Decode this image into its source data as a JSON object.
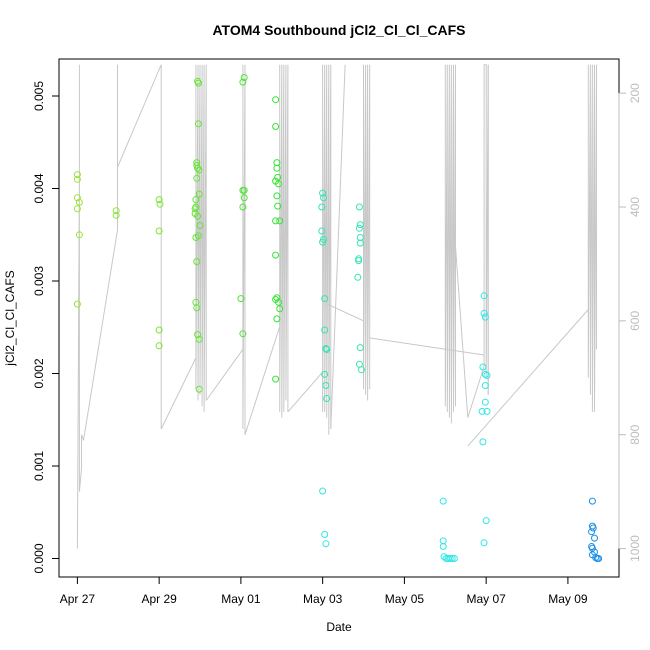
{
  "chart_data": {
    "type": "scatter",
    "title": "ATOM4 Southbound jCl2_Cl_Cl_CAFS",
    "xlabel": "Date",
    "ylabel": "jCl2_Cl_Cl_CAFS",
    "x_ticks": [
      "Apr 27",
      "Apr 29",
      "May 01",
      "May 03",
      "May 05",
      "May 07",
      "May 09"
    ],
    "x_tick_values": [
      0,
      2,
      4,
      6,
      8,
      10,
      12
    ],
    "xlim": [
      -0.45,
      13.25
    ],
    "y_ticks": [
      "0.000",
      "0.001",
      "0.002",
      "0.003",
      "0.004",
      "0.005"
    ],
    "y_tick_values": [
      0,
      0.001,
      0.002,
      0.003,
      0.004,
      0.005
    ],
    "ylim": [
      -0.0002,
      0.0054
    ],
    "right_axis": {
      "ticks": [
        "200",
        "400",
        "600",
        "800",
        "1000"
      ],
      "tick_values": [
        200,
        400,
        600,
        800,
        1000
      ],
      "lim": [
        140,
        1050
      ],
      "inverted": true,
      "color": "#bdbdbd"
    },
    "grid": false,
    "legend": "none",
    "altitude_line": {
      "color": "#c8c8c8",
      "segments": [
        [
          [
            0.0,
            1000
          ],
          [
            0.05,
            340
          ],
          [
            0.05,
            150
          ],
          [
            0.05,
            520
          ],
          [
            0.05,
            900
          ],
          [
            0.1,
            860
          ],
          [
            0.1,
            800
          ],
          [
            0.15,
            810
          ]
        ],
        [
          [
            0.15,
            810
          ],
          [
            0.98,
            440
          ],
          [
            0.98,
            150
          ]
        ],
        [
          [
            0.98,
            150
          ],
          [
            0.98,
            440
          ],
          [
            0.98,
            330
          ]
        ],
        [
          [
            0.98,
            330
          ],
          [
            2.05,
            150
          ],
          [
            2.05,
            540
          ],
          [
            2.05,
            790
          ]
        ],
        [
          [
            2.05,
            790
          ],
          [
            2.9,
            665
          ],
          [
            2.9,
            150
          ],
          [
            2.9,
            720
          ],
          [
            2.95,
            150
          ],
          [
            2.95,
            740
          ],
          [
            3.0,
            150
          ],
          [
            3.0,
            730
          ],
          [
            3.05,
            150
          ],
          [
            3.05,
            750
          ],
          [
            3.1,
            150
          ],
          [
            3.1,
            760
          ],
          [
            3.15,
            150
          ],
          [
            3.15,
            740
          ]
        ],
        [
          [
            3.15,
            740
          ],
          [
            4.05,
            650
          ],
          [
            4.05,
            150
          ],
          [
            4.05,
            790
          ],
          [
            4.1,
            150
          ],
          [
            4.1,
            800
          ]
        ],
        [
          [
            4.1,
            800
          ],
          [
            4.95,
            610
          ],
          [
            4.95,
            150
          ],
          [
            4.95,
            760
          ],
          [
            5.0,
            150
          ],
          [
            5.0,
            770
          ],
          [
            5.05,
            150
          ],
          [
            5.05,
            760
          ],
          [
            5.1,
            150
          ],
          [
            5.1,
            740
          ],
          [
            5.15,
            150
          ],
          [
            5.15,
            760
          ]
        ],
        [
          [
            5.15,
            760
          ],
          [
            6.0,
            690
          ],
          [
            6.0,
            150
          ],
          [
            6.0,
            760
          ],
          [
            6.05,
            150
          ],
          [
            6.05,
            760
          ],
          [
            6.1,
            150
          ],
          [
            6.1,
            770
          ],
          [
            6.15,
            150
          ],
          [
            6.15,
            800
          ],
          [
            6.2,
            150
          ],
          [
            6.2,
            790
          ]
        ],
        [
          [
            6.2,
            790
          ],
          [
            6.55,
            150
          ]
        ],
        [
          [
            6.1,
            570
          ],
          [
            7.0,
            600
          ],
          [
            7.0,
            150
          ],
          [
            7.0,
            720
          ],
          [
            7.05,
            150
          ],
          [
            7.05,
            730
          ],
          [
            7.1,
            150
          ],
          [
            7.1,
            740
          ],
          [
            7.15,
            150
          ],
          [
            7.15,
            720
          ]
        ],
        [
          [
            7.15,
            630
          ],
          [
            9.95,
            660
          ]
        ],
        [
          [
            9.0,
            470
          ],
          [
            9.0,
            150
          ],
          [
            9.0,
            750
          ],
          [
            9.05,
            150
          ],
          [
            9.05,
            760
          ],
          [
            9.1,
            150
          ],
          [
            9.1,
            770
          ],
          [
            9.15,
            150
          ],
          [
            9.15,
            780
          ],
          [
            9.2,
            150
          ],
          [
            9.2,
            760
          ],
          [
            9.25,
            150
          ],
          [
            9.25,
            750
          ]
        ],
        [
          [
            9.25,
            470
          ],
          [
            9.55,
            770
          ],
          [
            9.95,
            680
          ],
          [
            9.95,
            150
          ],
          [
            10.0,
            150
          ],
          [
            10.0,
            700
          ],
          [
            10.05,
            150
          ],
          [
            10.05,
            730
          ]
        ],
        [
          [
            10.05,
            730
          ],
          [
            10.05,
            150
          ]
        ],
        [
          [
            9.55,
            820
          ],
          [
            12.5,
            580
          ],
          [
            12.5,
            150
          ],
          [
            12.5,
            700
          ],
          [
            12.55,
            150
          ],
          [
            12.55,
            730
          ],
          [
            12.6,
            150
          ],
          [
            12.6,
            760
          ],
          [
            12.65,
            150
          ],
          [
            12.65,
            760
          ],
          [
            12.7,
            150
          ],
          [
            12.7,
            650
          ]
        ]
      ]
    },
    "points": [
      {
        "x": 0.0,
        "y": 0.0041,
        "c": "#99e633"
      },
      {
        "x": 0.0,
        "y": 0.00415,
        "c": "#99e633"
      },
      {
        "x": 0.0,
        "y": 0.0039,
        "c": "#99e633"
      },
      {
        "x": 0.05,
        "y": 0.00385,
        "c": "#99e633"
      },
      {
        "x": 0.0,
        "y": 0.00378,
        "c": "#99e633"
      },
      {
        "x": 0.05,
        "y": 0.0035,
        "c": "#99e633"
      },
      {
        "x": 0.0,
        "y": 0.00275,
        "c": "#99e633"
      },
      {
        "x": 0.95,
        "y": 0.00376,
        "c": "#88e633"
      },
      {
        "x": 0.95,
        "y": 0.00371,
        "c": "#88e633"
      },
      {
        "x": 2.0,
        "y": 0.00388,
        "c": "#7de633"
      },
      {
        "x": 2.02,
        "y": 0.00383,
        "c": "#7de633"
      },
      {
        "x": 2.0,
        "y": 0.00354,
        "c": "#7de633"
      },
      {
        "x": 2.0,
        "y": 0.00247,
        "c": "#7de633"
      },
      {
        "x": 2.0,
        "y": 0.0023,
        "c": "#7de633"
      },
      {
        "x": 2.88,
        "y": 0.00378,
        "c": "#66e633"
      },
      {
        "x": 2.88,
        "y": 0.00373,
        "c": "#66e633"
      },
      {
        "x": 2.9,
        "y": 0.00347,
        "c": "#66e633"
      },
      {
        "x": 2.9,
        "y": 0.00388,
        "c": "#66e633"
      },
      {
        "x": 2.92,
        "y": 0.00411,
        "c": "#66e633"
      },
      {
        "x": 2.92,
        "y": 0.00425,
        "c": "#66e633"
      },
      {
        "x": 2.92,
        "y": 0.00428,
        "c": "#66e633"
      },
      {
        "x": 2.94,
        "y": 0.00422,
        "c": "#66e633"
      },
      {
        "x": 2.94,
        "y": 0.00516,
        "c": "#66e633"
      },
      {
        "x": 2.96,
        "y": 0.00514,
        "c": "#66e633"
      },
      {
        "x": 2.96,
        "y": 0.0047,
        "c": "#66e633"
      },
      {
        "x": 2.98,
        "y": 0.0042,
        "c": "#66e633"
      },
      {
        "x": 2.98,
        "y": 0.00394,
        "c": "#66e633"
      },
      {
        "x": 2.9,
        "y": 0.0038,
        "c": "#66e633"
      },
      {
        "x": 2.94,
        "y": 0.0037,
        "c": "#66e633"
      },
      {
        "x": 2.96,
        "y": 0.00349,
        "c": "#66e633"
      },
      {
        "x": 3.0,
        "y": 0.0036,
        "c": "#66e633"
      },
      {
        "x": 2.92,
        "y": 0.00321,
        "c": "#66e633"
      },
      {
        "x": 2.9,
        "y": 0.00277,
        "c": "#66e633"
      },
      {
        "x": 2.92,
        "y": 0.00271,
        "c": "#66e633"
      },
      {
        "x": 2.94,
        "y": 0.00242,
        "c": "#66e633"
      },
      {
        "x": 2.98,
        "y": 0.00237,
        "c": "#66e633"
      },
      {
        "x": 2.98,
        "y": 0.00183,
        "c": "#66e633"
      },
      {
        "x": 4.05,
        "y": 0.00515,
        "c": "#4de633"
      },
      {
        "x": 4.08,
        "y": 0.0052,
        "c": "#4de633"
      },
      {
        "x": 4.05,
        "y": 0.00398,
        "c": "#4de633"
      },
      {
        "x": 4.08,
        "y": 0.00398,
        "c": "#4de633"
      },
      {
        "x": 4.08,
        "y": 0.0039,
        "c": "#4de633"
      },
      {
        "x": 4.05,
        "y": 0.0038,
        "c": "#4de633"
      },
      {
        "x": 4.0,
        "y": 0.00281,
        "c": "#4de633"
      },
      {
        "x": 4.05,
        "y": 0.00243,
        "c": "#4de633"
      },
      {
        "x": 4.85,
        "y": 0.00496,
        "c": "#33e633"
      },
      {
        "x": 4.85,
        "y": 0.00467,
        "c": "#33e633"
      },
      {
        "x": 4.88,
        "y": 0.00428,
        "c": "#33e633"
      },
      {
        "x": 4.88,
        "y": 0.00422,
        "c": "#33e633"
      },
      {
        "x": 4.9,
        "y": 0.00412,
        "c": "#33e633"
      },
      {
        "x": 4.85,
        "y": 0.00408,
        "c": "#33e633"
      },
      {
        "x": 4.92,
        "y": 0.00405,
        "c": "#33e633"
      },
      {
        "x": 4.88,
        "y": 0.00392,
        "c": "#33e633"
      },
      {
        "x": 4.9,
        "y": 0.00381,
        "c": "#33e633"
      },
      {
        "x": 4.85,
        "y": 0.00365,
        "c": "#33e633"
      },
      {
        "x": 4.95,
        "y": 0.00365,
        "c": "#33e633"
      },
      {
        "x": 4.85,
        "y": 0.00328,
        "c": "#33e633"
      },
      {
        "x": 4.85,
        "y": 0.0028,
        "c": "#33e633"
      },
      {
        "x": 4.88,
        "y": 0.00282,
        "c": "#33e633"
      },
      {
        "x": 4.92,
        "y": 0.00277,
        "c": "#33e633"
      },
      {
        "x": 4.95,
        "y": 0.0027,
        "c": "#33e633"
      },
      {
        "x": 4.88,
        "y": 0.00259,
        "c": "#33e633"
      },
      {
        "x": 4.85,
        "y": 0.00194,
        "c": "#33e633"
      },
      {
        "x": 6.0,
        "y": 0.00395,
        "c": "#33e6b3"
      },
      {
        "x": 6.02,
        "y": 0.0039,
        "c": "#33e6b3"
      },
      {
        "x": 5.98,
        "y": 0.0038,
        "c": "#33e6b3"
      },
      {
        "x": 5.98,
        "y": 0.00354,
        "c": "#33e6b3"
      },
      {
        "x": 6.02,
        "y": 0.00345,
        "c": "#33e6b3"
      },
      {
        "x": 6.0,
        "y": 0.00342,
        "c": "#33e6b3"
      },
      {
        "x": 6.05,
        "y": 0.00281,
        "c": "#33e6b3"
      },
      {
        "x": 6.05,
        "y": 0.00247,
        "c": "#33e6b3"
      },
      {
        "x": 6.08,
        "y": 0.00227,
        "c": "#33e6b3"
      },
      {
        "x": 6.1,
        "y": 0.00226,
        "c": "#33e6b3"
      },
      {
        "x": 6.05,
        "y": 0.00199,
        "c": "#33e6b3"
      },
      {
        "x": 6.08,
        "y": 0.00187,
        "c": "#33e6b3"
      },
      {
        "x": 6.1,
        "y": 0.00173,
        "c": "#33e6b3"
      },
      {
        "x": 6.0,
        "y": 0.00073,
        "c": "#33e6e6"
      },
      {
        "x": 6.05,
        "y": 0.00026,
        "c": "#33e6e6"
      },
      {
        "x": 6.08,
        "y": 0.00016,
        "c": "#33e6e6"
      },
      {
        "x": 6.9,
        "y": 0.0038,
        "c": "#33e6b3"
      },
      {
        "x": 6.92,
        "y": 0.00361,
        "c": "#33e6b3"
      },
      {
        "x": 6.9,
        "y": 0.00357,
        "c": "#33e6b3"
      },
      {
        "x": 6.92,
        "y": 0.00347,
        "c": "#33e6b3"
      },
      {
        "x": 6.92,
        "y": 0.00341,
        "c": "#33e6b3"
      },
      {
        "x": 6.88,
        "y": 0.00324,
        "c": "#33e6b3"
      },
      {
        "x": 6.88,
        "y": 0.00322,
        "c": "#33e6b3"
      },
      {
        "x": 6.86,
        "y": 0.00304,
        "c": "#33e6b3"
      },
      {
        "x": 6.92,
        "y": 0.00228,
        "c": "#33e6b3"
      },
      {
        "x": 6.9,
        "y": 0.0021,
        "c": "#33e6b3"
      },
      {
        "x": 6.95,
        "y": 0.00204,
        "c": "#33e6b3"
      },
      {
        "x": 8.95,
        "y": 0.00062,
        "c": "#33e6e6"
      },
      {
        "x": 8.95,
        "y": 0.00019,
        "c": "#33e6e6"
      },
      {
        "x": 8.95,
        "y": 0.00013,
        "c": "#33e6e6"
      },
      {
        "x": 8.97,
        "y": 2e-05,
        "c": "#33e6e6"
      },
      {
        "x": 9.02,
        "y": 0.0,
        "c": "#33e6e6"
      },
      {
        "x": 9.07,
        "y": 0.0,
        "c": "#33e6e6"
      },
      {
        "x": 9.12,
        "y": 0.0,
        "c": "#33e6e6"
      },
      {
        "x": 9.17,
        "y": 0.0,
        "c": "#33e6e6"
      },
      {
        "x": 9.22,
        "y": 0.0,
        "c": "#33e6e6"
      },
      {
        "x": 9.95,
        "y": 0.00284,
        "c": "#33e6e6"
      },
      {
        "x": 9.95,
        "y": 0.00265,
        "c": "#33e6e6"
      },
      {
        "x": 9.98,
        "y": 0.00261,
        "c": "#33e6e6"
      },
      {
        "x": 9.92,
        "y": 0.00207,
        "c": "#33e6e6"
      },
      {
        "x": 9.98,
        "y": 0.00199,
        "c": "#33e6e6"
      },
      {
        "x": 10.02,
        "y": 0.00198,
        "c": "#33e6e6"
      },
      {
        "x": 9.98,
        "y": 0.00187,
        "c": "#33e6e6"
      },
      {
        "x": 9.98,
        "y": 0.00169,
        "c": "#33e6e6"
      },
      {
        "x": 9.9,
        "y": 0.00159,
        "c": "#33e6e6"
      },
      {
        "x": 10.02,
        "y": 0.00159,
        "c": "#33e6e6"
      },
      {
        "x": 9.92,
        "y": 0.00126,
        "c": "#33e6e6"
      },
      {
        "x": 10.0,
        "y": 0.00041,
        "c": "#33e6e6"
      },
      {
        "x": 9.95,
        "y": 0.00017,
        "c": "#33e6e6"
      },
      {
        "x": 12.6,
        "y": 0.00062,
        "c": "#1a8fe6"
      },
      {
        "x": 12.6,
        "y": 0.00035,
        "c": "#1a8fe6"
      },
      {
        "x": 12.62,
        "y": 0.00033,
        "c": "#1a8fe6"
      },
      {
        "x": 12.58,
        "y": 0.00029,
        "c": "#1a8fe6"
      },
      {
        "x": 12.65,
        "y": 0.00022,
        "c": "#1a8fe6"
      },
      {
        "x": 12.58,
        "y": 0.00013,
        "c": "#1a8fe6"
      },
      {
        "x": 12.6,
        "y": 0.00011,
        "c": "#1a8fe6"
      },
      {
        "x": 12.65,
        "y": 7e-05,
        "c": "#1a8fe6"
      },
      {
        "x": 12.6,
        "y": 4e-05,
        "c": "#1a8fe6"
      },
      {
        "x": 12.68,
        "y": 1e-05,
        "c": "#1a8fe6"
      },
      {
        "x": 12.72,
        "y": 0.0,
        "c": "#1a8fe6"
      },
      {
        "x": 12.75,
        "y": 0.0,
        "c": "#1a8fe6"
      }
    ]
  }
}
